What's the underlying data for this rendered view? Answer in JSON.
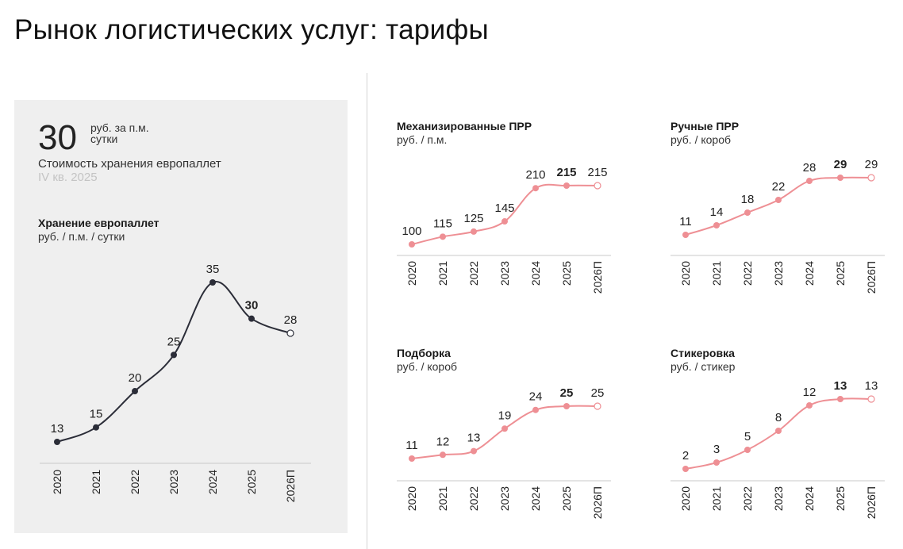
{
  "page_title": "Рынок логистических услуг: тарифы",
  "kpi": {
    "value": "30",
    "unit_line1": "руб. за п.м.",
    "unit_line2": "сутки",
    "description": "Стоимость хранения европаллет",
    "period": "IV кв. 2025"
  },
  "colors": {
    "main": "#2b2d38",
    "accent": "#ee8f94",
    "axis": "#c8c8c8"
  },
  "chart_data": [
    {
      "type": "line",
      "title": "Хранение европаллет",
      "subtitle": "руб. / п.м. / сутки",
      "categories": [
        "2020",
        "2021",
        "2022",
        "2023",
        "2024",
        "2025",
        "2026П"
      ],
      "values": [
        13,
        15,
        20,
        25,
        35,
        30,
        28
      ],
      "value_labels": [
        "13",
        "15",
        "20",
        "25",
        "35",
        "30",
        "28"
      ],
      "highlight_index": 5,
      "forecast_index": 6
    },
    {
      "type": "line",
      "title": "Механизированные ПРР",
      "subtitle": "руб. / п.м.",
      "categories": [
        "2020",
        "2021",
        "2022",
        "2023",
        "2024",
        "2025",
        "2026П"
      ],
      "values": [
        100,
        115,
        125,
        145,
        210,
        215,
        215
      ],
      "value_labels": [
        "100",
        "115",
        "125",
        "145",
        "210",
        "215",
        "215"
      ],
      "highlight_index": 5,
      "forecast_index": 6
    },
    {
      "type": "line",
      "title": "Ручные ПРР",
      "subtitle": "руб. / короб",
      "categories": [
        "2020",
        "2021",
        "2022",
        "2023",
        "2024",
        "2025",
        "2026П"
      ],
      "values": [
        11,
        14,
        18,
        22,
        28,
        29,
        29
      ],
      "value_labels": [
        "11",
        "14",
        "18",
        "22",
        "28",
        "29",
        "29"
      ],
      "highlight_index": 5,
      "forecast_index": 6
    },
    {
      "type": "line",
      "title": "Подборка",
      "subtitle": "руб. / короб",
      "categories": [
        "2020",
        "2021",
        "2022",
        "2023",
        "2024",
        "2025",
        "2026П"
      ],
      "values": [
        11,
        12,
        13,
        19,
        24,
        25,
        25
      ],
      "value_labels": [
        "11",
        "12",
        "13",
        "19",
        "24",
        "25",
        "25"
      ],
      "highlight_index": 5,
      "forecast_index": 6
    },
    {
      "type": "line",
      "title": "Стикеровка",
      "subtitle": "руб. / стикер",
      "categories": [
        "2020",
        "2021",
        "2022",
        "2023",
        "2024",
        "2025",
        "2026П"
      ],
      "values": [
        2,
        3,
        5,
        8,
        12,
        13,
        13
      ],
      "value_labels": [
        "2",
        "3",
        "5",
        "8",
        "12",
        "13",
        "13"
      ],
      "highlight_index": 5,
      "forecast_index": 6
    }
  ]
}
